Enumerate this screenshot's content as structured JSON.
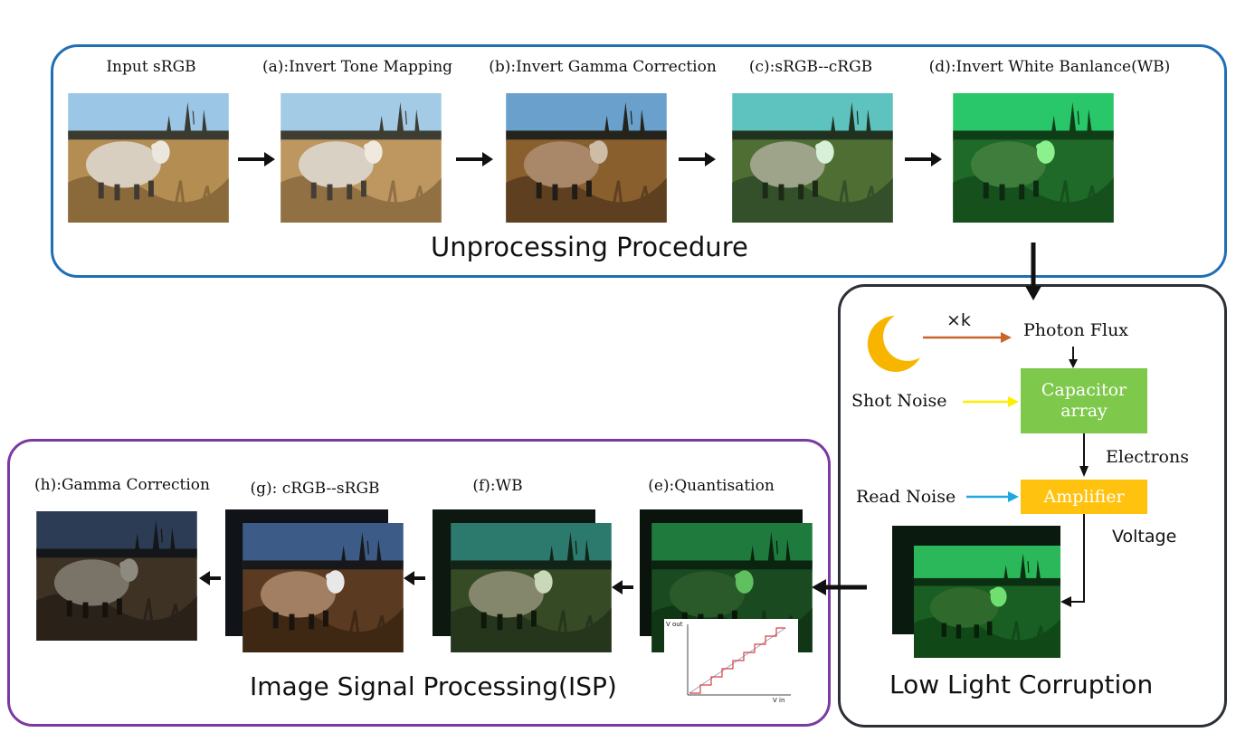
{
  "unprocessing": {
    "title": "Unprocessing Procedure",
    "stages": [
      {
        "label": "Input sRGB"
      },
      {
        "label": "(a):Invert Tone Mapping"
      },
      {
        "label": "(b):Invert Gamma Correction"
      },
      {
        "label": "(c):sRGB--cRGB"
      },
      {
        "label": "(d):Invert White Banlance(WB)"
      }
    ]
  },
  "corruption": {
    "title": "Low Light Corruption",
    "multiplier": "×k",
    "photon_flux": "Photon Flux",
    "shot_noise": "Shot Noise",
    "capacitor": "Capacitor array",
    "electrons": "Electrons",
    "read_noise": "Read Noise",
    "amplifier": "Amplifier",
    "voltage": "Voltage"
  },
  "isp": {
    "title": "Image Signal Processing(ISP)",
    "stages": [
      {
        "label": "(h):Gamma Correction"
      },
      {
        "label": "(g): cRGB--sRGB"
      },
      {
        "label": "(f):WB"
      },
      {
        "label": "(e):Quantisation"
      }
    ],
    "quant_plot": {
      "y_axis": "V out",
      "x_axis": "V in"
    }
  },
  "colors": {
    "unprocessing_border": "#1f6fb5",
    "corruption_border": "#2b2f36",
    "isp_border": "#7b3aa0",
    "capacitor": "#7ec84b",
    "amplifier": "#ffc20e",
    "shot_arrow": "#ffee00",
    "read_arrow": "#1fa8e0",
    "k_arrow": "#c8662a",
    "moon": "#f7b500"
  },
  "icons": [
    "moon-icon"
  ]
}
